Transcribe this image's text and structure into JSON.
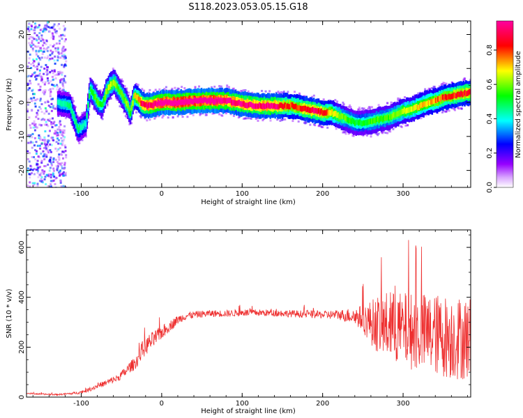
{
  "title": "S118.2023.053.05.15.G18",
  "chart_data": [
    {
      "type": "heatmap",
      "xlabel": "Height of straight line (km)",
      "ylabel": "Frequency (Hz)",
      "xlim": [
        -168,
        384
      ],
      "ylim": [
        -25,
        24
      ],
      "xticks": [
        -100,
        0,
        100,
        200,
        300
      ],
      "yticks": [
        -20,
        -10,
        0,
        10,
        20
      ],
      "colorbar": {
        "label": "Normalized spectral amplitude",
        "range": [
          0,
          0.97
        ],
        "ticks": [
          0.0,
          0.2,
          0.4,
          0.6,
          0.8
        ],
        "colormap": [
          "#ffffff",
          "#9600ff",
          "#0000ff",
          "#00ffff",
          "#00ff00",
          "#ffff00",
          "#ff0000",
          "#ff00a0"
        ]
      },
      "ridge": {
        "x": [
          -130,
          -115,
          -105,
          -95,
          -90,
          -85,
          -80,
          -75,
          -70,
          -65,
          -60,
          -55,
          -50,
          -45,
          -40,
          -35,
          -30,
          -25,
          -20,
          -10,
          0,
          20,
          40,
          60,
          80,
          100,
          120,
          140,
          150,
          160,
          170,
          180,
          190,
          200,
          210,
          220,
          230,
          240,
          250,
          260,
          270,
          280,
          290,
          300,
          310,
          320,
          330,
          340,
          350,
          360,
          370,
          384
        ],
        "y": [
          0,
          -1,
          -8,
          -6,
          4,
          2,
          0,
          -1,
          3,
          5,
          6,
          4,
          2,
          0,
          -3,
          2,
          1,
          -0.5,
          -1,
          -0.5,
          0,
          0,
          0.5,
          0.5,
          0.5,
          -0.5,
          -1,
          -1,
          -1,
          -1,
          -1.5,
          -2,
          -2.5,
          -3,
          -3,
          -4,
          -5,
          -6,
          -6,
          -5.5,
          -5,
          -4.5,
          -3.5,
          -2.5,
          -2,
          -1,
          0,
          0.5,
          1.5,
          2,
          2.5,
          3
        ]
      },
      "peak_amplitude": [
        0.3,
        0.35,
        0.35,
        0.3,
        0.4,
        0.45,
        0.45,
        0.4,
        0.5,
        0.55,
        0.5,
        0.45,
        0.45,
        0.5,
        0.45,
        0.55,
        0.65,
        0.8,
        0.85,
        0.9,
        0.95,
        0.95,
        0.97,
        0.95,
        0.9,
        0.85,
        0.85,
        0.85,
        0.75,
        0.7,
        0.7,
        0.8,
        0.8,
        0.75,
        0.6,
        0.5,
        0.45,
        0.4,
        0.4,
        0.45,
        0.45,
        0.45,
        0.5,
        0.55,
        0.55,
        0.6,
        0.6,
        0.65,
        0.7,
        0.7,
        0.75,
        0.75
      ]
    },
    {
      "type": "line",
      "xlabel": "Height of straight line (km)",
      "ylabel": "SNR (10 * v/v)",
      "xlim": [
        -168,
        384
      ],
      "ylim": [
        0,
        670
      ],
      "xticks": [
        -100,
        0,
        100,
        200,
        300
      ],
      "yticks": [
        0,
        200,
        400,
        600
      ],
      "series": [
        {
          "color": "#ee3030",
          "x": [
            -168,
            -150,
            -130,
            -110,
            -100,
            -90,
            -80,
            -70,
            -60,
            -55,
            -50,
            -45,
            -40,
            -35,
            -30,
            -25,
            -20,
            -15,
            -10,
            -5,
            0,
            5,
            10,
            20,
            30,
            40,
            60,
            80,
            100,
            120,
            150,
            180,
            200,
            220,
            240,
            250,
            260,
            270,
            280,
            300,
            320,
            340,
            360,
            384
          ],
          "y": [
            15,
            12,
            10,
            15,
            20,
            30,
            45,
            55,
            70,
            75,
            90,
            100,
            120,
            130,
            150,
            185,
            200,
            220,
            230,
            245,
            260,
            270,
            285,
            310,
            325,
            330,
            335,
            335,
            338,
            338,
            336,
            332,
            330,
            330,
            325,
            315,
            300,
            290,
            285,
            270,
            260,
            250,
            240,
            235
          ],
          "noise": [
            3,
            3,
            3,
            5,
            6,
            8,
            10,
            12,
            15,
            15,
            18,
            18,
            22,
            25,
            28,
            32,
            35,
            35,
            35,
            30,
            28,
            25,
            22,
            18,
            15,
            14,
            14,
            14,
            14,
            14,
            14,
            15,
            16,
            20,
            35,
            55,
            90,
            120,
            140,
            150,
            160,
            165,
            170,
            170
          ]
        }
      ]
    }
  ]
}
